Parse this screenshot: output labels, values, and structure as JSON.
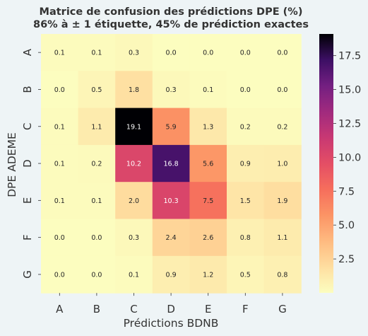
{
  "chart_data": {
    "type": "heatmap",
    "title_line1": "Matrice de confusion des prédictions DPE (%)",
    "title_line2": "86% à ± 1 étiquette, 45% de prédiction exactes",
    "xlabel": "Prédictions BDNB",
    "ylabel": "DPE ADEME",
    "x_categories": [
      "A",
      "B",
      "C",
      "D",
      "E",
      "F",
      "G"
    ],
    "y_categories": [
      "A",
      "B",
      "C",
      "D",
      "E",
      "F",
      "G"
    ],
    "values": [
      [
        0.1,
        0.1,
        0.3,
        0.0,
        0.0,
        0.0,
        0.0
      ],
      [
        0.0,
        0.5,
        1.8,
        0.3,
        0.1,
        0.0,
        0.0
      ],
      [
        0.1,
        1.1,
        19.1,
        5.9,
        1.3,
        0.2,
        0.2
      ],
      [
        0.1,
        0.2,
        10.2,
        16.8,
        5.6,
        0.9,
        1.0
      ],
      [
        0.1,
        0.1,
        2.0,
        10.3,
        7.5,
        1.5,
        1.9
      ],
      [
        0.0,
        0.0,
        0.3,
        2.4,
        2.6,
        0.8,
        1.1
      ],
      [
        0.0,
        0.0,
        0.1,
        0.9,
        1.2,
        0.5,
        0.8
      ]
    ],
    "cell_labels": [
      [
        "0.1",
        "0.1",
        "0.3",
        "0.0",
        "0.0",
        "0.0",
        "0.0"
      ],
      [
        "0.0",
        "0.5",
        "1.8",
        "0.3",
        "0.1",
        "0.0",
        "0.0"
      ],
      [
        "0.1",
        "1.1",
        "19.1",
        "5.9",
        "1.3",
        "0.2",
        "0.2"
      ],
      [
        "0.1",
        "0.2",
        "10.2",
        "16.8",
        "5.6",
        "0.9",
        "1.0"
      ],
      [
        "0.1",
        "0.1",
        "2.0",
        "10.3",
        "7.5",
        "1.5",
        "1.9"
      ],
      [
        "0.0",
        "0.0",
        "0.3",
        "2.4",
        "2.6",
        "0.8",
        "1.1"
      ],
      [
        "0.0",
        "0.0",
        "0.1",
        "0.9",
        "1.2",
        "0.5",
        "0.8"
      ]
    ],
    "colormap": "magma_r",
    "vmin": 0.0,
    "vmax": 19.1,
    "colorbar_ticks": [
      2.5,
      5.0,
      7.5,
      10.0,
      12.5,
      15.0,
      17.5
    ],
    "colorbar_tick_labels": [
      "2.5",
      "5.0",
      "7.5",
      "10.0",
      "12.5",
      "15.0",
      "17.5"
    ],
    "grid": false
  }
}
